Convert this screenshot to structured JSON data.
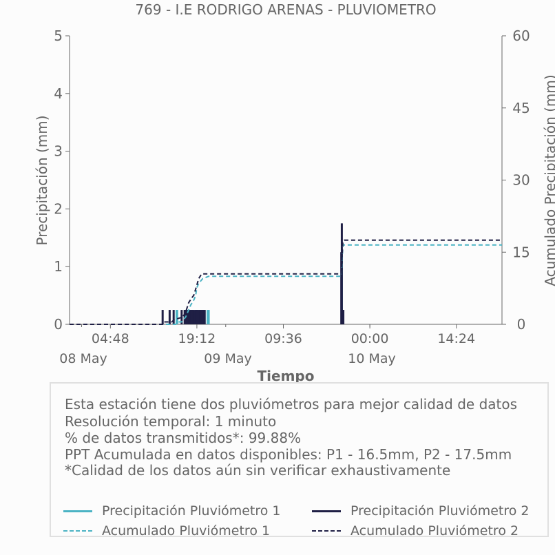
{
  "chart_data": {
    "type": "bar",
    "title": "769 - I.E RODRIGO ARENAS - PLUVIOMETRO",
    "xlabel": "Tiempo",
    "ylabel": "Precipitación (mm)",
    "ylabel_right": "Acumulado Precipitación (mm)",
    "ylim": [
      0,
      5
    ],
    "ylim_right": [
      0,
      60
    ],
    "yticks": [
      "0",
      "1",
      "2",
      "3",
      "4",
      "5"
    ],
    "yticks_right": [
      "0",
      "15",
      "30",
      "45",
      "60"
    ],
    "xlim": [
      "2024-05-07 22:00",
      "2024-05-10 22:00"
    ],
    "xticks": [
      {
        "t": "2024-05-08 04:48",
        "label": "04:48",
        "date": "08 May"
      },
      {
        "t": "2024-05-08 19:12",
        "label": "19:12",
        "date": ""
      },
      {
        "t": "2024-05-09 09:36",
        "label": "09:36",
        "date": "09 May"
      },
      {
        "t": "2024-05-10 00:00",
        "label": "00:00",
        "date": "10 May"
      },
      {
        "t": "2024-05-10 14:24",
        "label": "14:24",
        "date": ""
      }
    ],
    "date_labels": [
      {
        "t": "2024-05-08 00:00",
        "label": "08 May"
      },
      {
        "t": "2024-05-09 00:00",
        "label": "09 May"
      },
      {
        "t": "2024-05-10 00:00",
        "label": "10 May"
      }
    ],
    "grid": false,
    "series": [
      {
        "name": "Precipitación Pluviómetro 1",
        "kind": "bar",
        "color": "#4bb3c4",
        "points": [
          [
            "2024-05-08 15:50",
            0.25
          ],
          [
            "2024-05-08 15:55",
            0.25
          ],
          [
            "2024-05-08 17:20",
            0.25
          ],
          [
            "2024-05-08 17:40",
            0.25
          ],
          [
            "2024-05-08 18:10",
            0.25
          ],
          [
            "2024-05-08 18:30",
            0.25
          ],
          [
            "2024-05-08 19:00",
            0.25
          ],
          [
            "2024-05-08 19:20",
            0.25
          ],
          [
            "2024-05-08 19:50",
            0.25
          ],
          [
            "2024-05-08 20:15",
            0.25
          ],
          [
            "2024-05-08 21:00",
            0.25
          ],
          [
            "2024-05-08 21:10",
            0.25
          ],
          [
            "2024-05-09 19:20",
            1.25
          ],
          [
            "2024-05-09 19:25",
            0.25
          ]
        ]
      },
      {
        "name": "Precipitación Pluviómetro 2",
        "kind": "bar",
        "color": "#1f1f45",
        "points": [
          [
            "2024-05-08 13:30",
            0.25
          ],
          [
            "2024-05-08 14:40",
            0.25
          ],
          [
            "2024-05-08 15:20",
            0.25
          ],
          [
            "2024-05-08 16:40",
            0.25
          ],
          [
            "2024-05-08 17:10",
            0.25
          ],
          [
            "2024-05-08 17:25",
            0.25
          ],
          [
            "2024-05-08 17:40",
            0.25
          ],
          [
            "2024-05-08 17:55",
            0.25
          ],
          [
            "2024-05-08 18:10",
            0.25
          ],
          [
            "2024-05-08 18:20",
            0.25
          ],
          [
            "2024-05-08 18:35",
            0.25
          ],
          [
            "2024-05-08 18:50",
            0.25
          ],
          [
            "2024-05-08 19:05",
            0.25
          ],
          [
            "2024-05-08 19:15",
            0.25
          ],
          [
            "2024-05-08 19:30",
            0.25
          ],
          [
            "2024-05-08 19:45",
            0.25
          ],
          [
            "2024-05-08 20:00",
            0.25
          ],
          [
            "2024-05-08 20:15",
            0.25
          ],
          [
            "2024-05-08 20:30",
            0.25
          ],
          [
            "2024-05-09 19:15",
            1.25
          ],
          [
            "2024-05-09 19:20",
            1.75
          ],
          [
            "2024-05-09 19:25",
            0.25
          ],
          [
            "2024-05-09 19:35",
            0.25
          ]
        ]
      },
      {
        "name": "Acumulado Pluviómetro 1",
        "kind": "line",
        "axis": "right",
        "dashed": true,
        "color": "#4bb3c4",
        "points": [
          [
            "2024-05-07 22:00",
            0
          ],
          [
            "2024-05-08 15:40",
            0
          ],
          [
            "2024-05-08 16:00",
            0.5
          ],
          [
            "2024-05-08 16:40",
            0.5
          ],
          [
            "2024-05-08 17:20",
            1.5
          ],
          [
            "2024-05-08 17:50",
            3
          ],
          [
            "2024-05-08 18:10",
            4
          ],
          [
            "2024-05-08 18:40",
            5
          ],
          [
            "2024-05-08 19:00",
            6
          ],
          [
            "2024-05-08 19:10",
            7.5
          ],
          [
            "2024-05-08 19:30",
            8.5
          ],
          [
            "2024-05-08 20:10",
            9.5
          ],
          [
            "2024-05-08 21:10",
            10
          ],
          [
            "2024-05-09 19:15",
            10
          ],
          [
            "2024-05-09 19:30",
            16.5
          ],
          [
            "2024-05-10 22:00",
            16.5
          ]
        ]
      },
      {
        "name": "Acumulado Pluviómetro 2",
        "kind": "line",
        "axis": "right",
        "dashed": true,
        "color": "#1f1f45",
        "points": [
          [
            "2024-05-07 22:00",
            0
          ],
          [
            "2024-05-08 13:30",
            0
          ],
          [
            "2024-05-08 13:40",
            0.5
          ],
          [
            "2024-05-08 15:00",
            0.5
          ],
          [
            "2024-05-08 15:30",
            1
          ],
          [
            "2024-05-08 16:50",
            1.5
          ],
          [
            "2024-05-08 17:20",
            2.5
          ],
          [
            "2024-05-08 17:50",
            4.5
          ],
          [
            "2024-05-08 18:20",
            5.5
          ],
          [
            "2024-05-08 18:40",
            6
          ],
          [
            "2024-05-08 19:10",
            8
          ],
          [
            "2024-05-08 19:30",
            9.5
          ],
          [
            "2024-05-08 20:00",
            10.5
          ],
          [
            "2024-05-08 20:40",
            10.5
          ],
          [
            "2024-05-09 19:15",
            10.5
          ],
          [
            "2024-05-09 19:20",
            13
          ],
          [
            "2024-05-09 19:30",
            17
          ],
          [
            "2024-05-09 19:45",
            17.5
          ],
          [
            "2024-05-10 22:00",
            17.5
          ]
        ]
      }
    ]
  },
  "info": {
    "lines": [
      "Esta estación tiene dos pluviómetros para mejor calidad de datos",
      "Resolución temporal: 1 minuto",
      "% de datos transmitidos*: 99.88%",
      "PPT Acumulada en datos disponibles: P1 - 16.5mm, P2 - 17.5mm",
      "*Calidad de los datos aún sin verificar exhaustivamente"
    ]
  },
  "legend": {
    "items": [
      {
        "label": "Precipitación Pluviómetro 1",
        "color": "#4bb3c4",
        "dashed": false
      },
      {
        "label": "Precipitación Pluviómetro 2",
        "color": "#1f1f45",
        "dashed": false
      },
      {
        "label": "Acumulado Pluviómetro 1",
        "color": "#4bb3c4",
        "dashed": true
      },
      {
        "label": "Acumulado Pluviómetro 2",
        "color": "#1f1f45",
        "dashed": true
      }
    ]
  }
}
